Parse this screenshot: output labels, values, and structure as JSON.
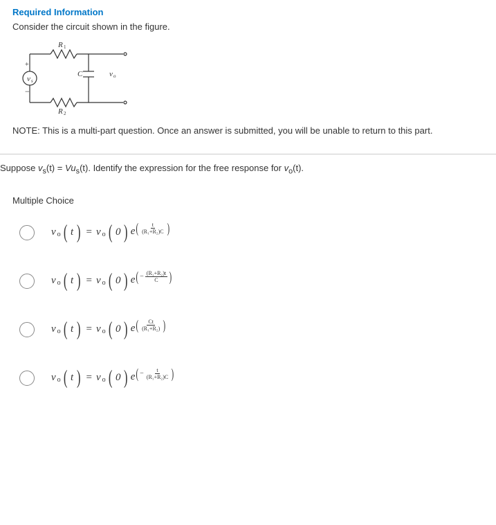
{
  "header": {
    "title": "Required Information",
    "consider": "Consider the circuit shown in the figure."
  },
  "circuit": {
    "labels": {
      "R1": "R",
      "R1sub": "1",
      "R2": "R",
      "R2sub": "2",
      "vs": "v",
      "vs_sub": "s",
      "C": "C",
      "vo": "v",
      "vo_sub": "o"
    }
  },
  "note": "NOTE: This is a multi-part question. Once an answer is submitted, you will be unable to return to this part.",
  "suppose": {
    "pre": "Suppose ",
    "vs": "v",
    "vs_sub": "s",
    "vs_arg": "(t)",
    "eq": " = ",
    "V": "V",
    "u": "u",
    "u_sub": "s",
    "u_arg": "(t)",
    "post": ". Identify the expression for the free response for ",
    "vo": "v",
    "vo_sub": "o",
    "vo_arg": "(t).",
    "end": ""
  },
  "mc_label": "Multiple Choice",
  "options": [
    {
      "lhs_v": "v",
      "lhs_sub": "o",
      "lhs_arg": "t",
      "rhs_v": "v",
      "rhs_sub": "o",
      "rhs_arg": "0",
      "exp_num": "t",
      "exp_den": "(R₁+R₂)C",
      "neg": false
    },
    {
      "lhs_v": "v",
      "lhs_sub": "o",
      "lhs_arg": "t",
      "rhs_v": "v",
      "rhs_sub": "o",
      "rhs_arg": "0",
      "exp_num": "(R₁+R₂)t",
      "exp_den": "C",
      "neg": true
    },
    {
      "lhs_v": "v",
      "lhs_sub": "o",
      "lhs_arg": "t",
      "rhs_v": "v",
      "rhs_sub": "o",
      "rhs_arg": "0",
      "exp_num": "Ct",
      "exp_den": "(R₁+R₂)",
      "neg": false
    },
    {
      "lhs_v": "v",
      "lhs_sub": "o",
      "lhs_arg": "t",
      "rhs_v": "v",
      "rhs_sub": "o",
      "rhs_arg": "0",
      "exp_num": "t",
      "exp_den": "(R₁+R₂)C",
      "neg": true
    }
  ]
}
